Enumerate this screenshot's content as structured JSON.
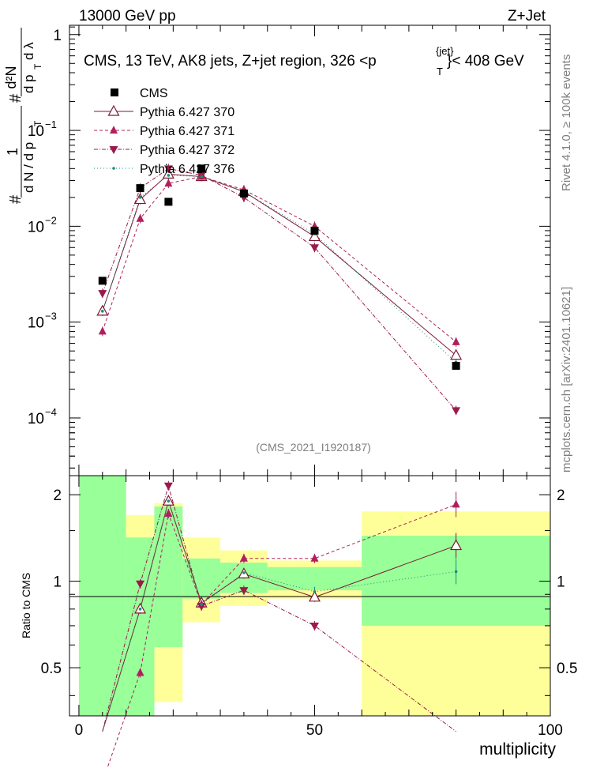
{
  "header": {
    "left": "13000 GeV pp",
    "right": "Z+Jet"
  },
  "chart_data": {
    "type": "scatter",
    "title": "CMS, 13 TeV, AK8 jets, Z+jet region, 326 <p",
    "title_sup": "{jet}",
    "title_sub": "T",
    "title_end": "}< 408 GeV",
    "analysis_label": "(CMS_2021_I1920187)",
    "side_label_top": "Rivet 4.1.0, ≥ 100k events",
    "side_label_bottom": "mcplots.cern.ch [arXiv:2401.10621]",
    "xlabel": "multiplicity",
    "xlim": [
      -2,
      100
    ],
    "x_ticks": [
      "0",
      "50",
      "100"
    ],
    "ylabel": {
      "lhs_num": "1",
      "lhs_den": "d N / d p",
      "lhs_den_sub": "T",
      "hash": "#",
      "rhs_num_top": "d²N",
      "rhs_den": "d p",
      "rhs_den_sub": "T",
      "rhs_den_end": "d λ"
    },
    "y_scale": "log",
    "ylim": [
      2.5e-05,
      1.25
    ],
    "y_ticks": [
      {
        "base": "1",
        "exp": ""
      },
      {
        "base": "10",
        "exp": "−1"
      },
      {
        "base": "10",
        "exp": "−2"
      },
      {
        "base": "10",
        "exp": "−3"
      },
      {
        "base": "10",
        "exp": "−4"
      }
    ],
    "ratio_ylabel": "Ratio to CMS",
    "ratio_ylim": [
      0.34,
      2.33
    ],
    "ratio_ticks": [
      "2",
      "1",
      "0.5"
    ],
    "bins": [
      [
        0,
        10
      ],
      [
        10,
        16
      ],
      [
        16,
        22
      ],
      [
        22,
        30
      ],
      [
        30,
        40
      ],
      [
        40,
        60
      ],
      [
        60,
        100
      ]
    ],
    "band_yellow": [
      [
        0.0,
        2.4
      ],
      [
        0.72,
        1.7
      ],
      [
        0.38,
        1.87
      ],
      [
        0.72,
        1.42
      ],
      [
        0.82,
        1.28
      ],
      [
        0.87,
        1.18
      ],
      [
        0.0,
        1.75
      ]
    ],
    "band_green": [
      [
        0.0,
        2.4
      ],
      [
        0.0,
        1.42
      ],
      [
        0.59,
        1.82
      ],
      [
        0.87,
        1.2
      ],
      [
        0.91,
        1.16
      ],
      [
        0.93,
        1.12
      ],
      [
        0.7,
        1.44
      ]
    ],
    "x": [
      5,
      13,
      19,
      26,
      35,
      50,
      80
    ],
    "cms": [
      0.0027,
      0.025,
      0.018,
      0.04,
      0.022,
      0.009,
      0.00035
    ],
    "series": [
      {
        "name": "Pythia 6.427 370",
        "style": "open-triangle-up",
        "color": "#7b1a31",
        "dash": "",
        "values": [
          0.0013,
          0.019,
          0.035,
          0.033,
          0.023,
          0.0078,
          0.00045
        ],
        "ratio": [
          0.3,
          0.8,
          1.9,
          0.84,
          1.06,
          0.88,
          1.33
        ]
      },
      {
        "name": "Pythia 6.427 371",
        "style": "filled-triangle-up",
        "color": "#b0205f",
        "dash": "4,3",
        "values": [
          0.0008,
          0.012,
          0.028,
          0.033,
          0.024,
          0.01,
          0.00062
        ],
        "ratio": [
          0.2,
          0.48,
          1.72,
          0.83,
          1.2,
          1.2,
          1.85
        ]
      },
      {
        "name": "Pythia 6.427 372",
        "style": "filled-triangle-down",
        "color": "#9a1a4c",
        "dash": "5,2,1,2",
        "values": [
          0.002,
          0.025,
          0.04,
          0.034,
          0.02,
          0.006,
          0.00012
        ],
        "ratio": [
          0.3,
          0.98,
          2.15,
          0.82,
          0.93,
          0.7,
          0.3
        ]
      },
      {
        "name": "Pythia 6.427 376",
        "style": "small-dot",
        "color": "#1e8a7a",
        "dash": "1,3",
        "values": [
          0.0013,
          0.02,
          0.034,
          0.033,
          0.023,
          0.0083,
          0.00038
        ],
        "ratio": [
          0.3,
          0.8,
          1.9,
          0.83,
          1.07,
          0.92,
          1.08
        ]
      }
    ],
    "legend_cms": "CMS"
  }
}
